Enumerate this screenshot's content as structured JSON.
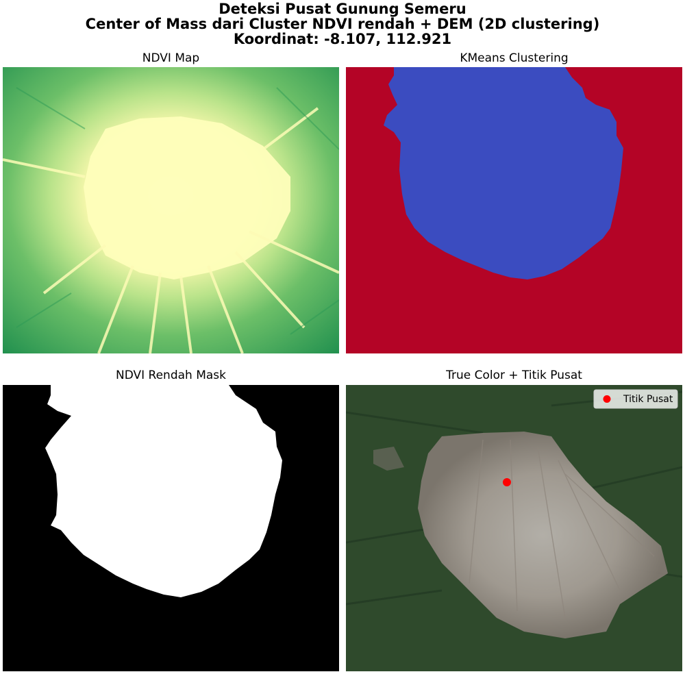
{
  "figure": {
    "title_lines": [
      "Deteksi Pusat Gunung Semeru",
      "Center of Mass dari Cluster NDVI rendah + DEM (2D clustering)",
      "Koordinat: -8.107, 112.921"
    ]
  },
  "panels": {
    "ndvi": {
      "title": "NDVI Map"
    },
    "kmeans": {
      "title": "KMeans Clustering"
    },
    "mask": {
      "title": "NDVI Rendah Mask"
    },
    "truecolor": {
      "title": "True Color + Titik Pusat",
      "legend_label": "Titik Pusat"
    }
  },
  "colors": {
    "ndvi_low": "#fefeba",
    "ndvi_mid": "#8fd07a",
    "ndvi_high": "#1f8f4e",
    "kmeans_cluster_low_ndvi": "#3b4cc0",
    "kmeans_cluster_other": "#b40426",
    "mask_low_ndvi": "#ffffff",
    "mask_background": "#000000",
    "center_point": "#ff0000"
  },
  "chart_data": [
    {
      "type": "heatmap",
      "title": "NDVI Map",
      "colormap": "RdYlGn-like (yellow = low, green = high)",
      "axes": "off"
    },
    {
      "type": "heatmap",
      "title": "KMeans Clustering",
      "n_clusters": 2,
      "axes": "off"
    },
    {
      "type": "heatmap",
      "title": "NDVI Rendah Mask",
      "values": "binary",
      "axes": "off"
    },
    {
      "type": "scatter",
      "title": "True Color + Titik Pusat",
      "series": [
        {
          "name": "Titik Pusat",
          "lat": -8.107,
          "lon": 112.921
        }
      ],
      "legend": "top-right",
      "axes": "off"
    }
  ]
}
